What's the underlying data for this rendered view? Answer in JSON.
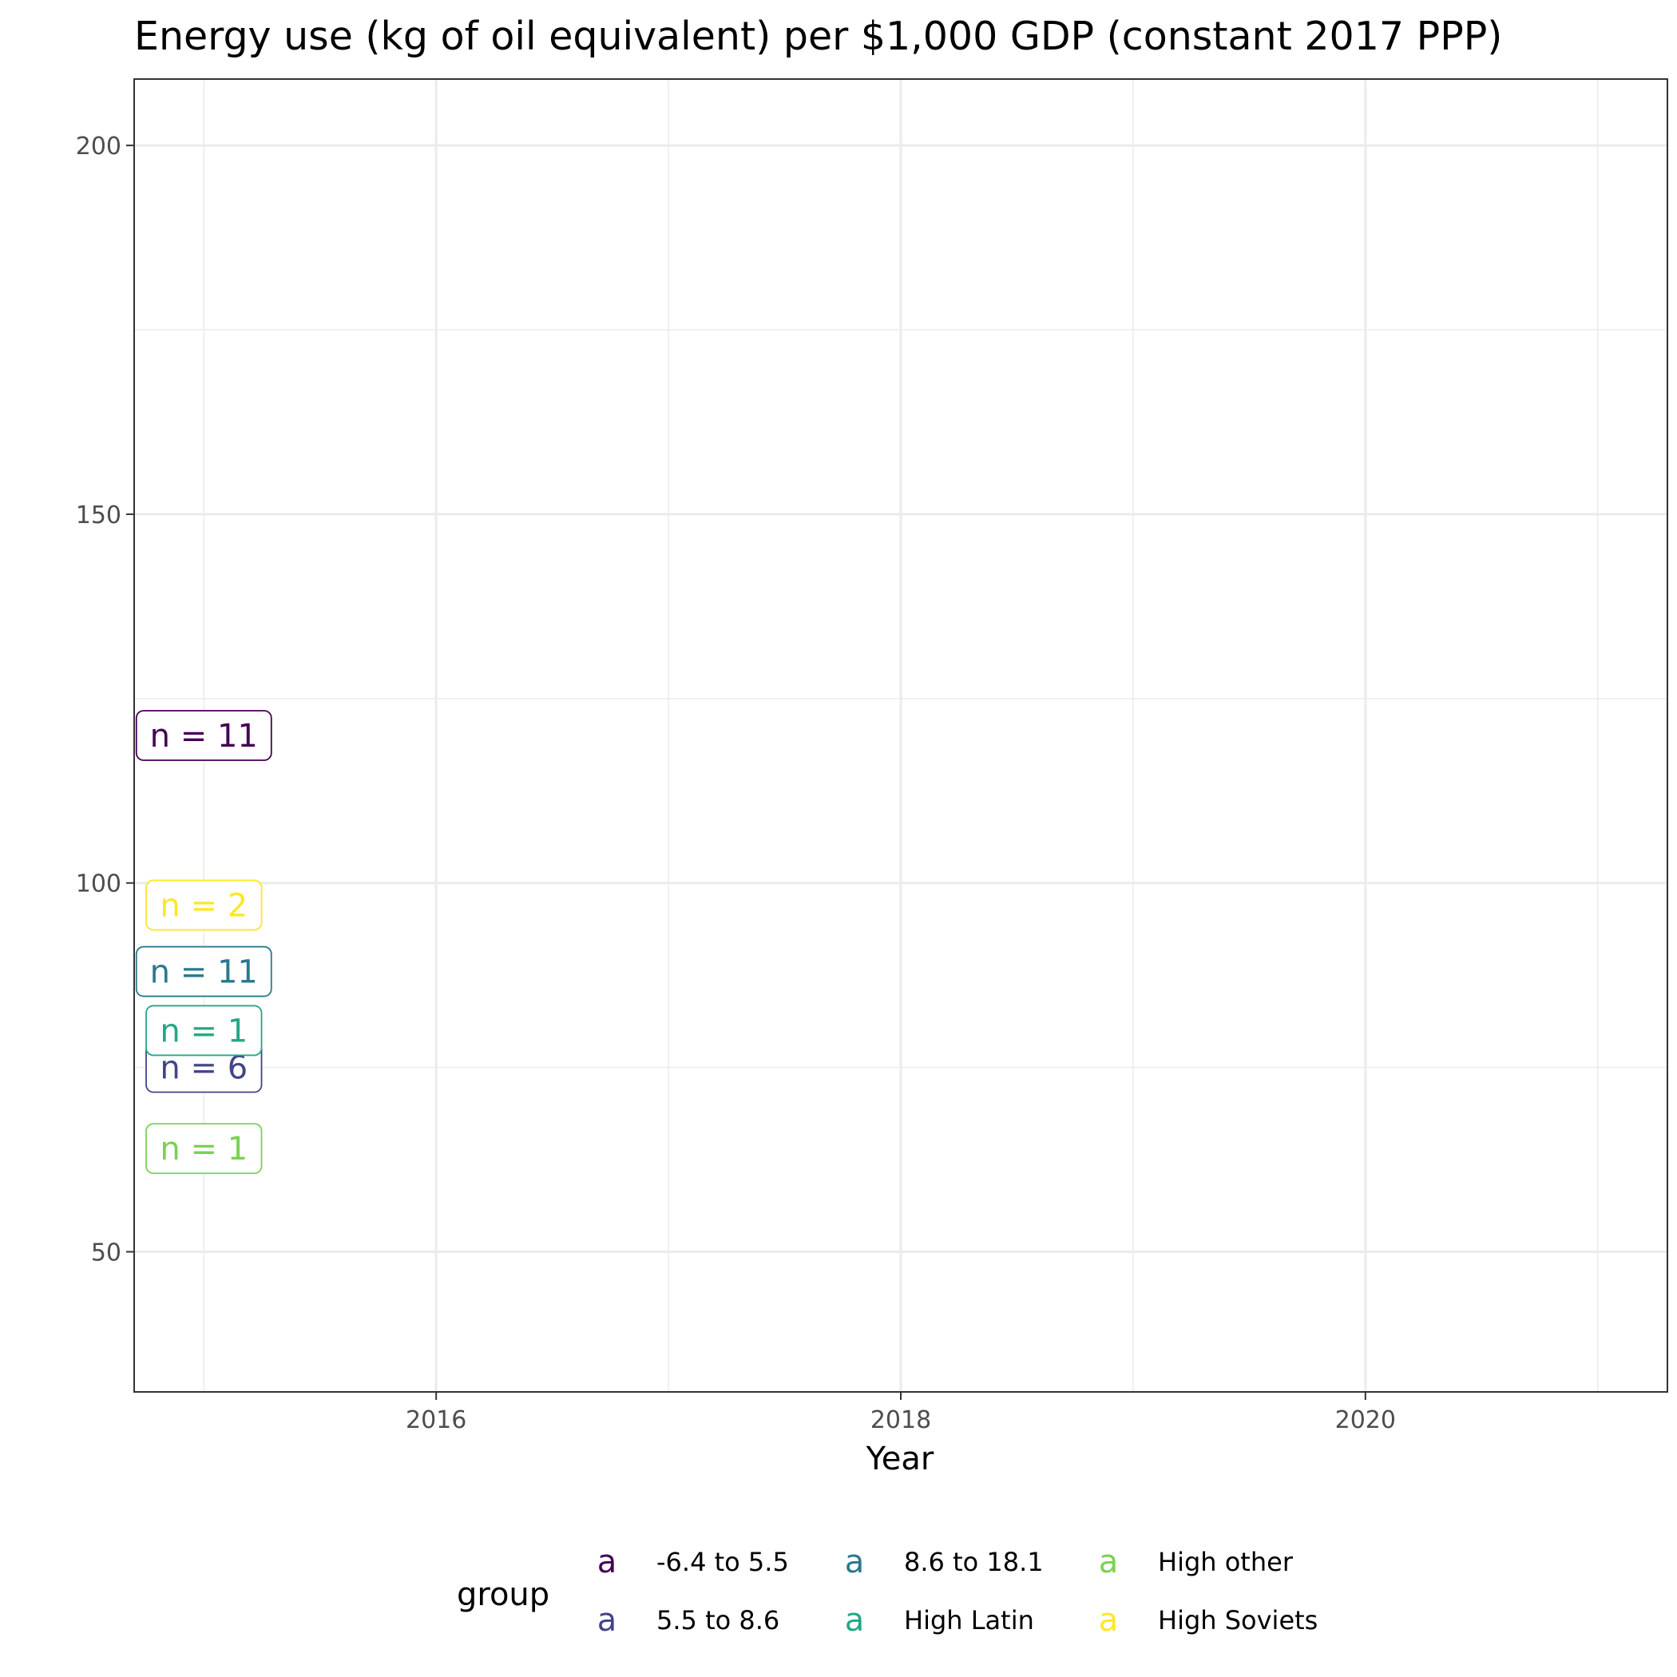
{
  "chart_data": {
    "type": "scatter",
    "title": "Energy use (kg of oil equivalent) per $1,000 GDP (constant 2017 PPP)",
    "xlabel": "Year",
    "ylabel": "",
    "xlim": [
      2014.7,
      2021.3
    ],
    "ylim": [
      31,
      209
    ],
    "x_major_ticks": [
      2016,
      2018,
      2020
    ],
    "x_minor_ticks": [
      2015,
      2017,
      2019,
      2021
    ],
    "y_major_ticks": [
      50,
      100,
      150,
      200
    ],
    "y_minor_ticks": [
      75,
      125,
      175
    ],
    "grid": true,
    "legend": {
      "title": "group",
      "position": "bottom",
      "key_glyph": "a"
    },
    "series": [
      {
        "name": "-6.4 to 5.5",
        "color": "#440154",
        "points": [
          {
            "x": 2015,
            "y": 120,
            "label": "n = 11"
          }
        ]
      },
      {
        "name": "5.5 to 8.6",
        "color": "#414487",
        "points": [
          {
            "x": 2015,
            "y": 75,
            "label": "n = 6"
          }
        ]
      },
      {
        "name": "8.6 to 18.1",
        "color": "#2A788E",
        "points": [
          {
            "x": 2015,
            "y": 88,
            "label": "n = 11"
          }
        ]
      },
      {
        "name": "High Latin",
        "color": "#22A884",
        "points": [
          {
            "x": 2015,
            "y": 80,
            "label": "n = 1"
          }
        ]
      },
      {
        "name": "High other",
        "color": "#7AD151",
        "points": [
          {
            "x": 2015,
            "y": 64,
            "label": "n = 1"
          }
        ]
      },
      {
        "name": "High Soviets",
        "color": "#FDE725",
        "points": [
          {
            "x": 2015,
            "y": 97,
            "label": "n = 2"
          }
        ]
      }
    ]
  }
}
